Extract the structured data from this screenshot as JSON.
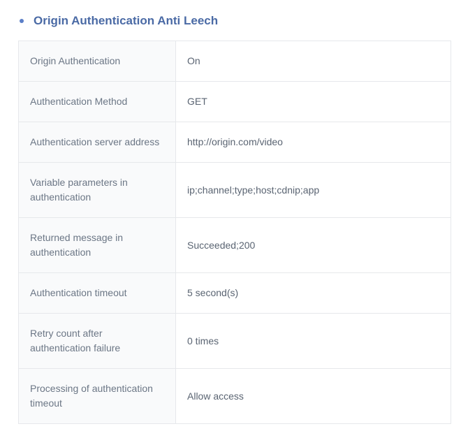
{
  "section": {
    "title": "Origin Authentication Anti Leech",
    "title_color": "#4a6aa5",
    "bullet_color": "#5b7fc7"
  },
  "table": {
    "border_color": "#e6e8eb",
    "label_bg": "#f9fafb",
    "value_bg": "#ffffff",
    "label_text_color": "#6b7685",
    "value_text_color": "#5a6472",
    "font_size": 14,
    "rows": [
      {
        "label": "Origin Authentication",
        "value": "On"
      },
      {
        "label": "Authentication Method",
        "value": "GET"
      },
      {
        "label": "Authentication server address",
        "value": "http://origin.com/video"
      },
      {
        "label": "Variable parameters in authentication",
        "value": "ip;channel;type;host;cdnip;app"
      },
      {
        "label": "Returned message in authentication",
        "value": "Succeeded;200"
      },
      {
        "label": "Authentication timeout",
        "value": "5 second(s)"
      },
      {
        "label": "Retry count after authentication failure",
        "value": "0 times"
      },
      {
        "label": "Processing of authentication timeout",
        "value": "Allow access"
      }
    ]
  }
}
